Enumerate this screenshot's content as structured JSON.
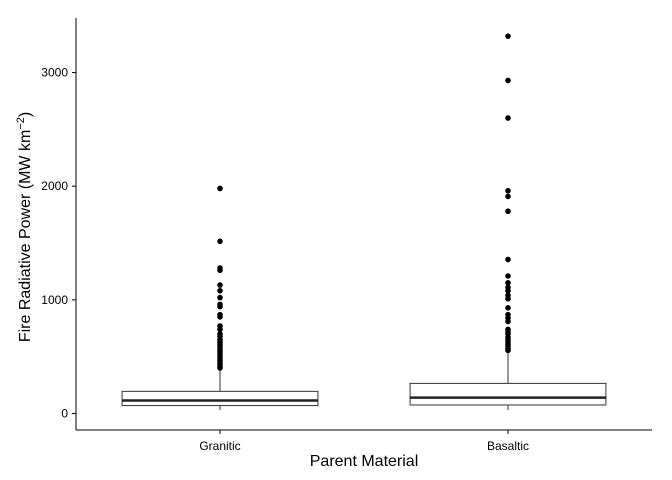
{
  "chart_data": {
    "type": "box",
    "title": "",
    "xlabel": "Parent Material",
    "ylabel_main": "Fire Radiative Power (MW km",
    "ylabel_sup": "−2",
    "ylabel_end": ")",
    "ylim": [
      -145,
      3480
    ],
    "yticks": [
      0,
      1000,
      2000,
      3000
    ],
    "ytick_labels": [
      "0",
      "1000",
      "2000",
      "3000"
    ],
    "grid": false,
    "categories": [
      "Granitic",
      "Basaltic"
    ],
    "boxes": [
      {
        "name": "Granitic",
        "whisker_low": 30,
        "q1": 70,
        "median": 115,
        "q3": 195,
        "whisker_high": 390,
        "outliers": [
          1980,
          1515,
          1280,
          1260,
          1130,
          1080,
          1020,
          960,
          940,
          870,
          850,
          770,
          740,
          700,
          680,
          650,
          630,
          610,
          590,
          570,
          550,
          530,
          510,
          490,
          470,
          450,
          430,
          410,
          400
        ]
      },
      {
        "name": "Basaltic",
        "whisker_low": 30,
        "q1": 75,
        "median": 140,
        "q3": 265,
        "whisker_high": 540,
        "outliers": [
          3320,
          2930,
          2600,
          1960,
          1910,
          1780,
          1355,
          1210,
          1150,
          1110,
          1080,
          1040,
          1010,
          930,
          870,
          840,
          810,
          740,
          720,
          700,
          670,
          650,
          630,
          610,
          590,
          570,
          555
        ]
      }
    ]
  }
}
